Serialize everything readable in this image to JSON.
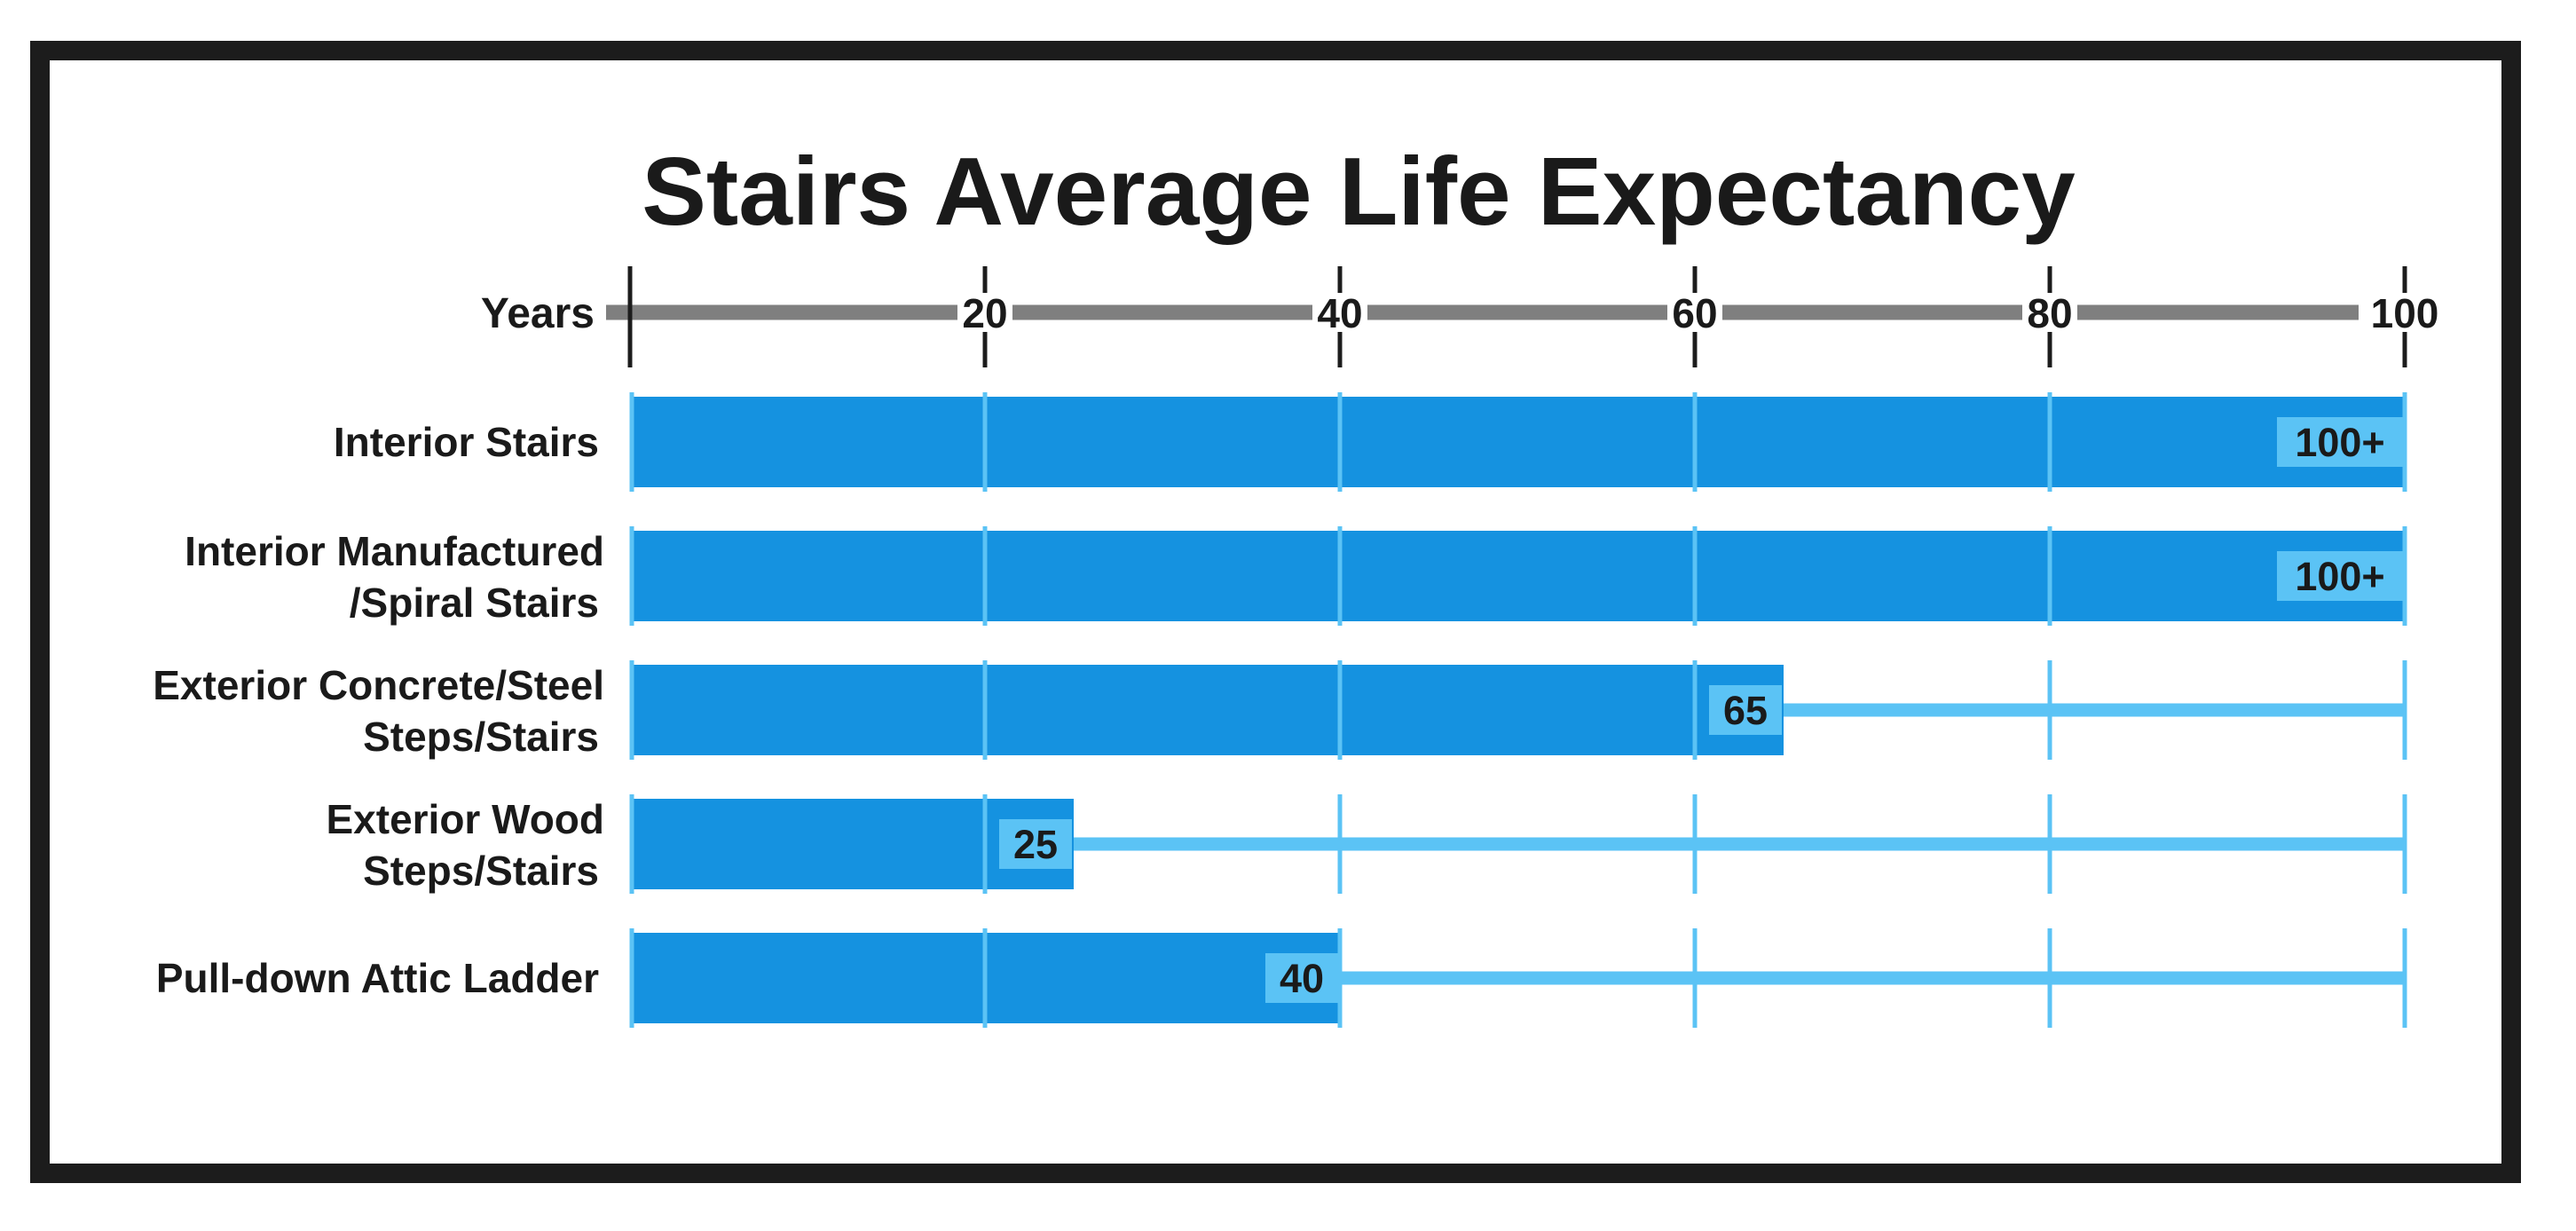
{
  "chart_data": {
    "type": "bar",
    "orientation": "horizontal",
    "title": "Stairs Average Life Expectancy",
    "axis_label": "Years",
    "xlim": [
      0,
      100
    ],
    "ticks": [
      20,
      40,
      60,
      80,
      100
    ],
    "grid": true,
    "categories": [
      [
        "Interior Stairs"
      ],
      [
        "Interior Manufactured",
        "/Spiral Stairs"
      ],
      [
        "Exterior Concrete/Steel",
        "Steps/Stairs"
      ],
      [
        "Exterior Wood",
        "Steps/Stairs"
      ],
      [
        "Pull-down Attic Ladder"
      ]
    ],
    "values": [
      100,
      100,
      65,
      25,
      40
    ],
    "value_labels": [
      "100+",
      "100+",
      "65",
      "25",
      "40"
    ],
    "colors": {
      "bar": "#1592e0",
      "value_label_bg": "#5bc3f5",
      "grid": "#5bc3f5",
      "axis": "#7f7f7f",
      "frame": "#1c1c1c",
      "text": "#1a1a1a"
    }
  }
}
